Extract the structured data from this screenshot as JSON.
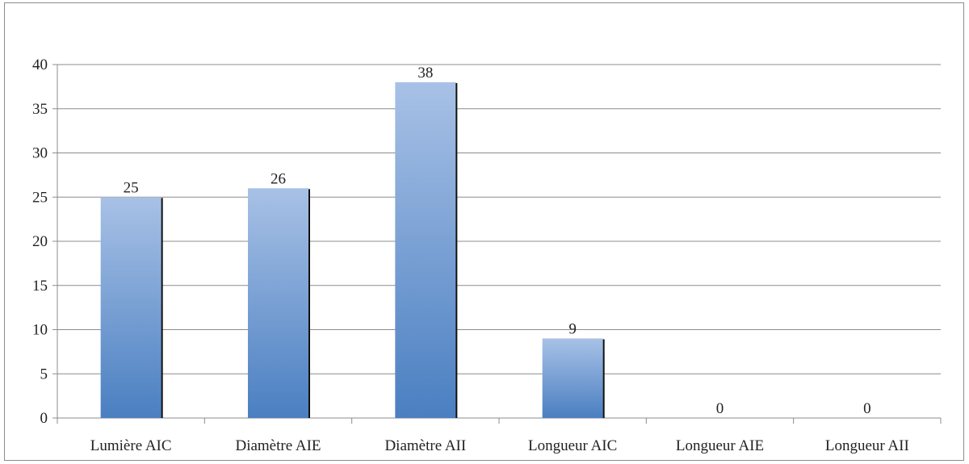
{
  "chart_data": {
    "type": "bar",
    "categories": [
      "Lumière AIC",
      "Diamètre AIE",
      "Diamètre AII",
      "Longueur AIC",
      "Longueur AIE",
      "Longueur AII"
    ],
    "values": [
      25,
      26,
      38,
      9,
      0,
      0
    ],
    "ylim": [
      0,
      40
    ],
    "yticks": [
      0,
      5,
      10,
      15,
      20,
      25,
      30,
      35,
      40
    ],
    "grid": true,
    "legend": "none",
    "colors": {
      "bar_top": "#a8c1e6",
      "bar_bottom": "#4a7fc1",
      "bar_shadow": "#111111",
      "grid": "#8c8c8c",
      "axis": "#8c8c8c"
    }
  }
}
